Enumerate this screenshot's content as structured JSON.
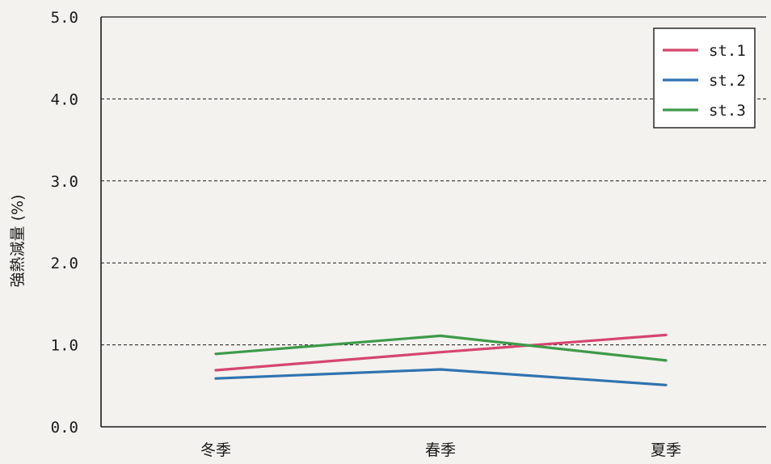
{
  "chart_data": {
    "type": "line",
    "ylabel": "強熱減量 (%)",
    "xlabel": "",
    "title": "",
    "ylim": [
      0,
      5
    ],
    "yticks": [
      "0.0",
      "1.0",
      "2.0",
      "3.0",
      "4.0",
      "5.0"
    ],
    "grid": "horizontal dashed",
    "legend_position": "top-right",
    "categories": [
      "冬季",
      "春季",
      "夏季"
    ],
    "series": [
      {
        "name": "st.1",
        "color": "#d6456f",
        "values": [
          0.69,
          0.91,
          1.12
        ]
      },
      {
        "name": "st.2",
        "color": "#2f73b0",
        "values": [
          0.59,
          0.7,
          0.51
        ]
      },
      {
        "name": "st.3",
        "color": "#3e9a4a",
        "values": [
          0.89,
          1.11,
          0.81
        ]
      }
    ]
  }
}
